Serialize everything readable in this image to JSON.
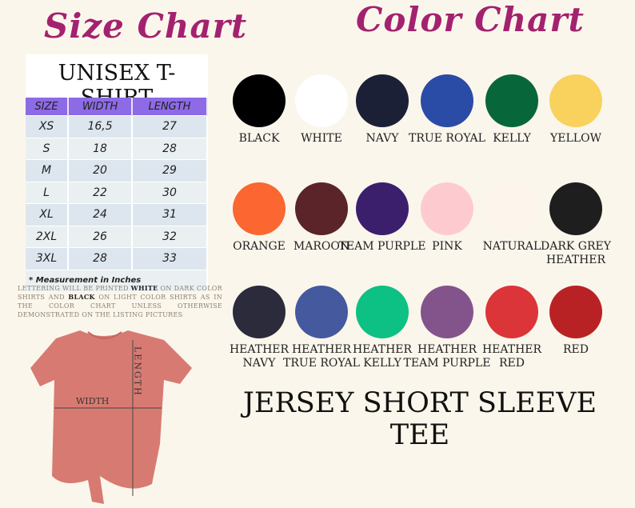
{
  "size_chart": {
    "title": "Size Chart",
    "subtitle": "UNISEX T-SHIRT",
    "headers": [
      "SIZE",
      "WIDTH",
      "LENGTH"
    ],
    "rows": [
      [
        "XS",
        "16,5",
        "27"
      ],
      [
        "S",
        "18",
        "28"
      ],
      [
        "M",
        "20",
        "29"
      ],
      [
        "L",
        "22",
        "30"
      ],
      [
        "XL",
        "24",
        "31"
      ],
      [
        "2XL",
        "26",
        "32"
      ],
      [
        "3XL",
        "28",
        "33"
      ]
    ],
    "note": "* Measurement in Inches"
  },
  "lettering": {
    "p1": "LETTERING WILL BE PRINTED ",
    "white": "WHITE",
    "p2": " ON DARK COLOR SHIRTS AND ",
    "black": "BLACK",
    "p3": " ON LIGHT COLOR SHIRTS AS IN THE COLOR CHART UNLESS OTHERWISE DEMONSTRATED ON THE LISTING PICTURES"
  },
  "shirt": {
    "width_label": "WIDTH",
    "length_label": "LENGTH",
    "color": "#d77b72"
  },
  "color_chart": {
    "title": "Color Chart",
    "colors": [
      {
        "name": "BLACK",
        "hex": "#000000"
      },
      {
        "name": "WHITE",
        "hex": "#ffffff"
      },
      {
        "name": "NAVY",
        "hex": "#1b2036"
      },
      {
        "name": "TRUE ROYAL",
        "hex": "#2a4ca6"
      },
      {
        "name": "KELLY",
        "hex": "#07673a"
      },
      {
        "name": "YELLOW",
        "hex": "#f8d25c"
      },
      {
        "name": "ORANGE",
        "hex": "#fb6631"
      },
      {
        "name": "MAROON",
        "hex": "#5a2429"
      },
      {
        "name": "TEAM PURPLE",
        "hex": "#3c1f6c"
      },
      {
        "name": "PINK",
        "hex": "#fdcbcf"
      },
      {
        "name": "NATURAL",
        "hex": "#fdf4ec"
      },
      {
        "name": "DARK GREY HEATHER",
        "hex": "#1e1e1e"
      },
      {
        "name": "HEATHER NAVY",
        "hex": "#2c2b3c"
      },
      {
        "name": "HEATHER TRUE ROYAL",
        "hex": "#44599e"
      },
      {
        "name": "HEATHER KELLY",
        "hex": "#0dc084"
      },
      {
        "name": "HEATHER TEAM PURPLE",
        "hex": "#83548c"
      },
      {
        "name": "HEATHER RED",
        "hex": "#db3439"
      },
      {
        "name": "RED",
        "hex": "#b92224"
      }
    ]
  },
  "product": "JERSEY SHORT SLEEVE TEE"
}
